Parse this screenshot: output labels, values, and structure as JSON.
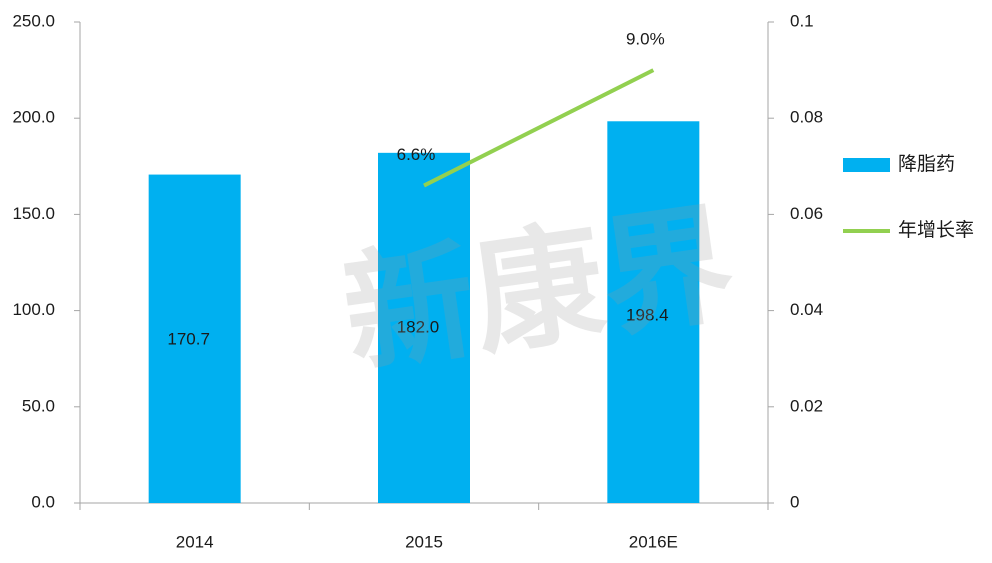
{
  "chart_data": {
    "type": "bar_line",
    "watermark": "新康界",
    "categories": [
      "2014",
      "2015",
      "2016E"
    ],
    "series": [
      {
        "name": "降脂药",
        "type": "bar",
        "color": "#00b0f0",
        "values": [
          170.7,
          182.0,
          198.4
        ],
        "value_labels": [
          "170.7",
          "182.0",
          "198.4"
        ]
      },
      {
        "name": "年增长率",
        "type": "line",
        "axis": "y2",
        "color": "#92d050",
        "values": [
          null,
          0.066,
          0.09
        ],
        "value_labels": [
          null,
          "6.6%",
          "9.0%"
        ]
      }
    ],
    "ylim": [
      0,
      250
    ],
    "yticks": [
      {
        "value": 0,
        "label": "0.0"
      },
      {
        "value": 50,
        "label": "50.0"
      },
      {
        "value": 100,
        "label": "100.0"
      },
      {
        "value": 150,
        "label": "150.0"
      },
      {
        "value": 200,
        "label": "200.0"
      },
      {
        "value": 250,
        "label": "250.0"
      }
    ],
    "y2lim": [
      0,
      0.1
    ],
    "y2ticks": [
      0,
      0.02,
      0.04,
      0.06,
      0.08,
      0.1
    ],
    "legend": "right",
    "grid": false
  }
}
